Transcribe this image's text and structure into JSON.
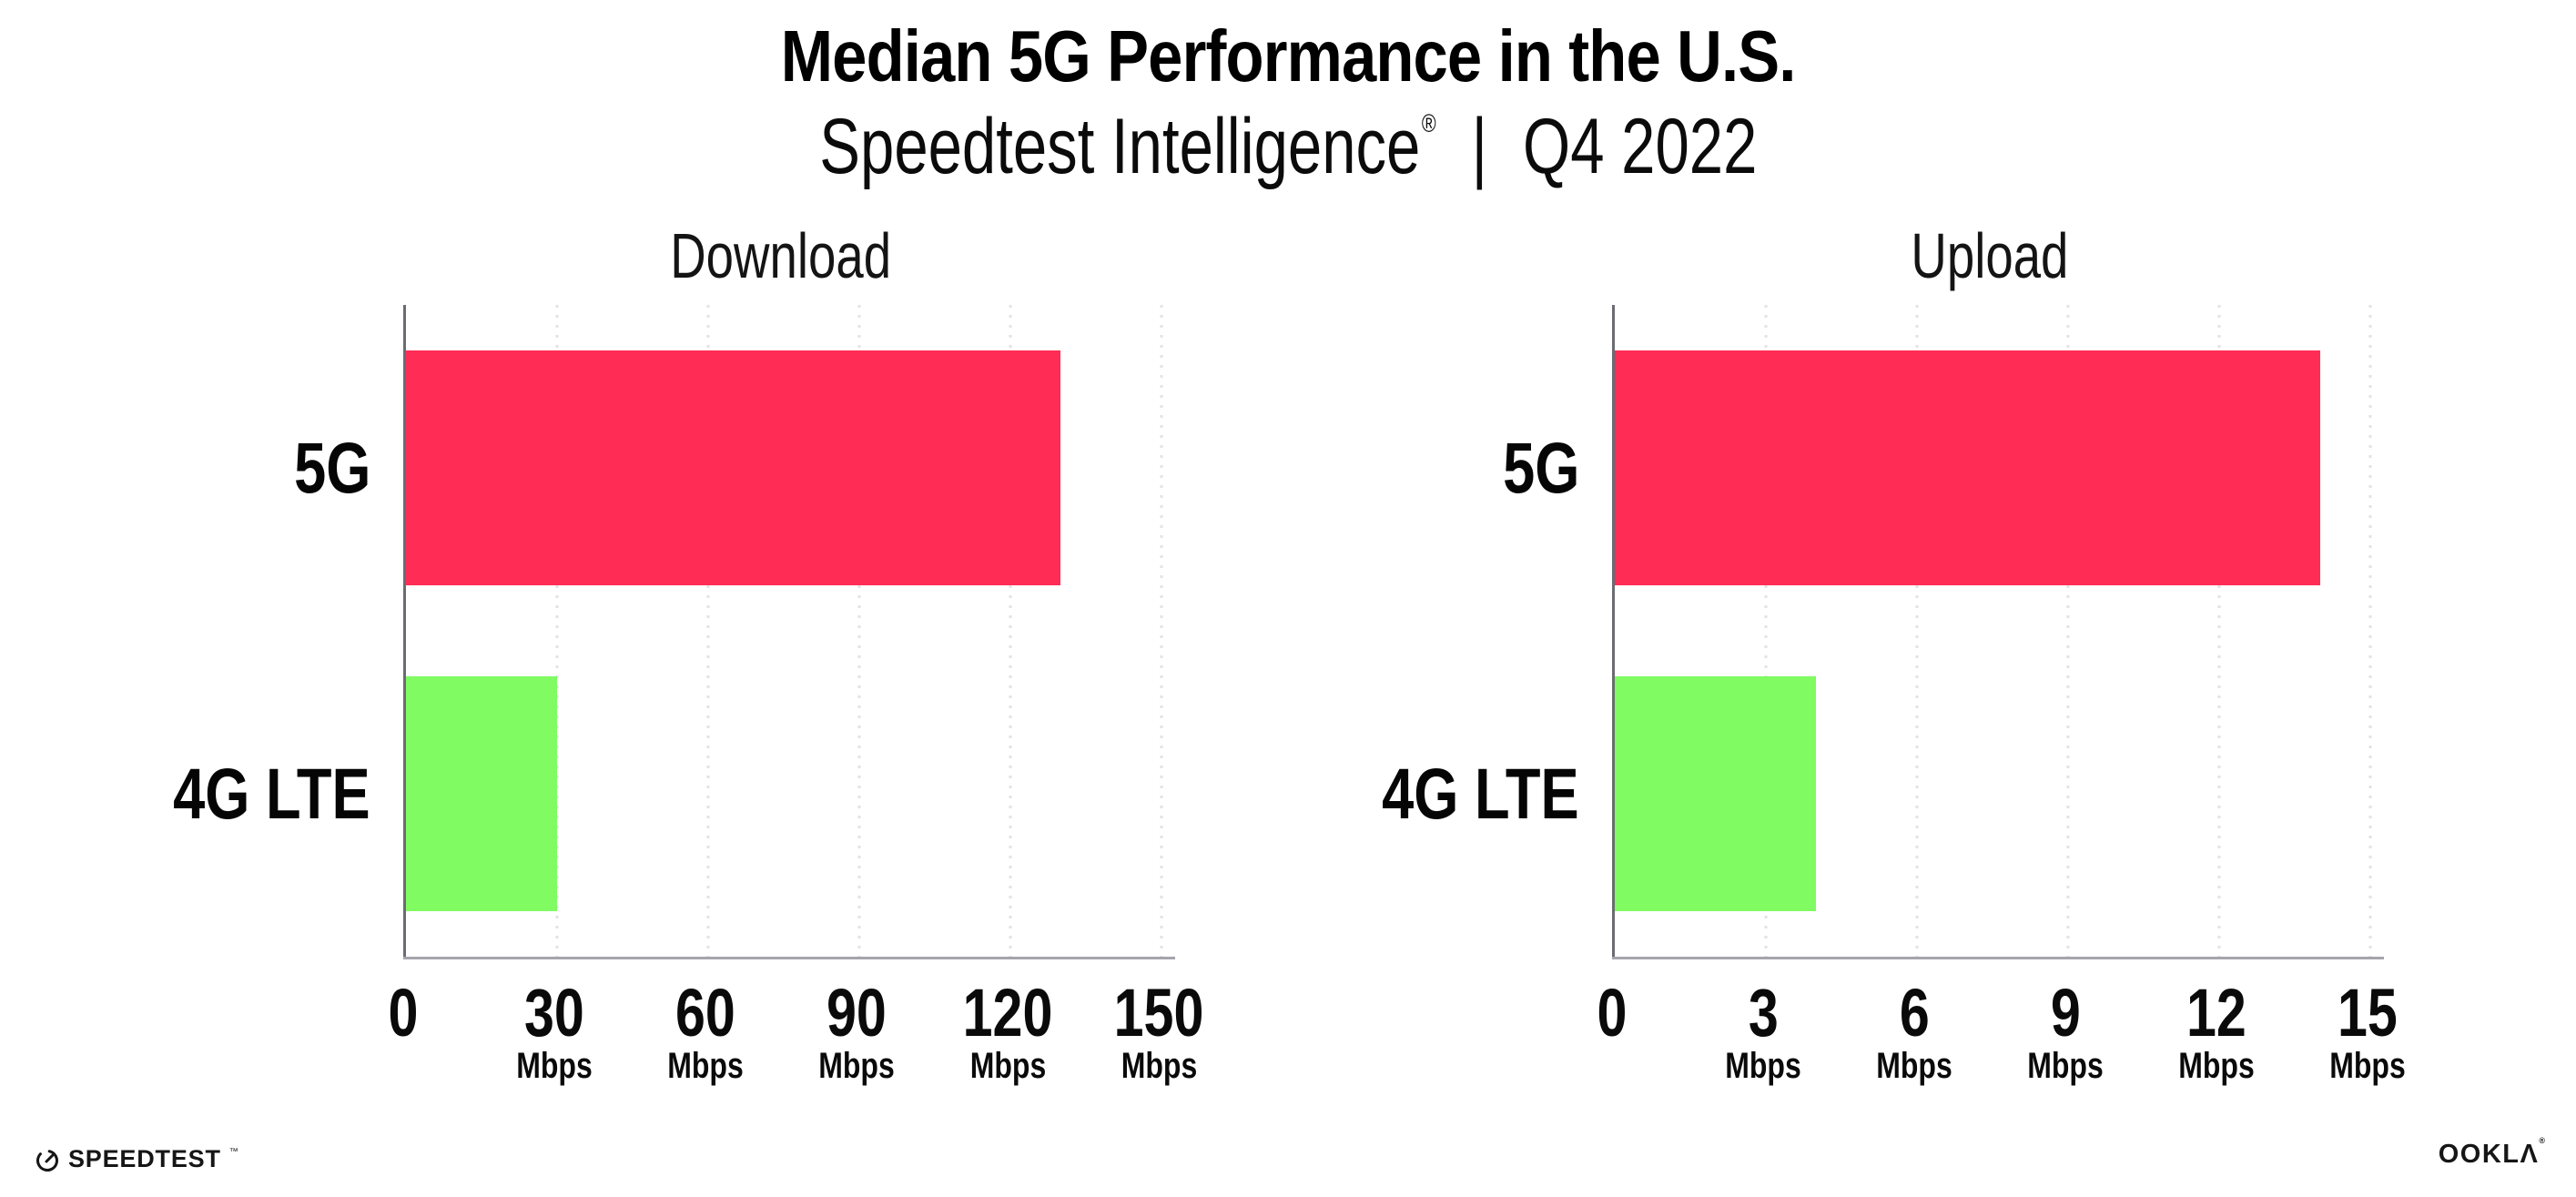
{
  "header": {
    "title": "Median 5G Performance in the U.S.",
    "subtitle_brand": "Speedtest Intelligence",
    "subtitle_reg": "®",
    "subtitle_sep": "|",
    "subtitle_period": "Q4 2022"
  },
  "chart_data": [
    {
      "type": "bar",
      "orientation": "horizontal",
      "title": "Download",
      "categories": [
        "5G",
        "4G LTE"
      ],
      "values": [
        130,
        30
      ],
      "unit": "Mbps",
      "xlim": [
        0,
        150
      ],
      "xticks": [
        0,
        30,
        60,
        90,
        120,
        150
      ],
      "tick_unit": "Mbps",
      "bar_colors": [
        "#FF2D55",
        "#80FB61"
      ],
      "grid": "dotted-vertical",
      "legend": "none"
    },
    {
      "type": "bar",
      "orientation": "horizontal",
      "title": "Upload",
      "categories": [
        "5G",
        "4G LTE"
      ],
      "values": [
        14,
        4
      ],
      "unit": "Mbps",
      "xlim": [
        0,
        15
      ],
      "xticks": [
        0,
        3,
        6,
        9,
        12,
        15
      ],
      "tick_unit": "Mbps",
      "bar_colors": [
        "#FF2D55",
        "#80FB61"
      ],
      "grid": "dotted-vertical",
      "legend": "none"
    }
  ],
  "footer": {
    "speedtest_label": "SPEEDTEST",
    "speedtest_tm": "™",
    "ookla_label": "OOKLΛ",
    "ookla_reg": "®"
  },
  "colors": {
    "bar_5g": "#FF2D55",
    "bar_4g_lte": "#80FB61",
    "y_axis": "#6B6B74",
    "x_axis": "#A5A5AD",
    "gridline": "#E2E2EB",
    "text": "#000000",
    "background": "#FFFFFF"
  }
}
